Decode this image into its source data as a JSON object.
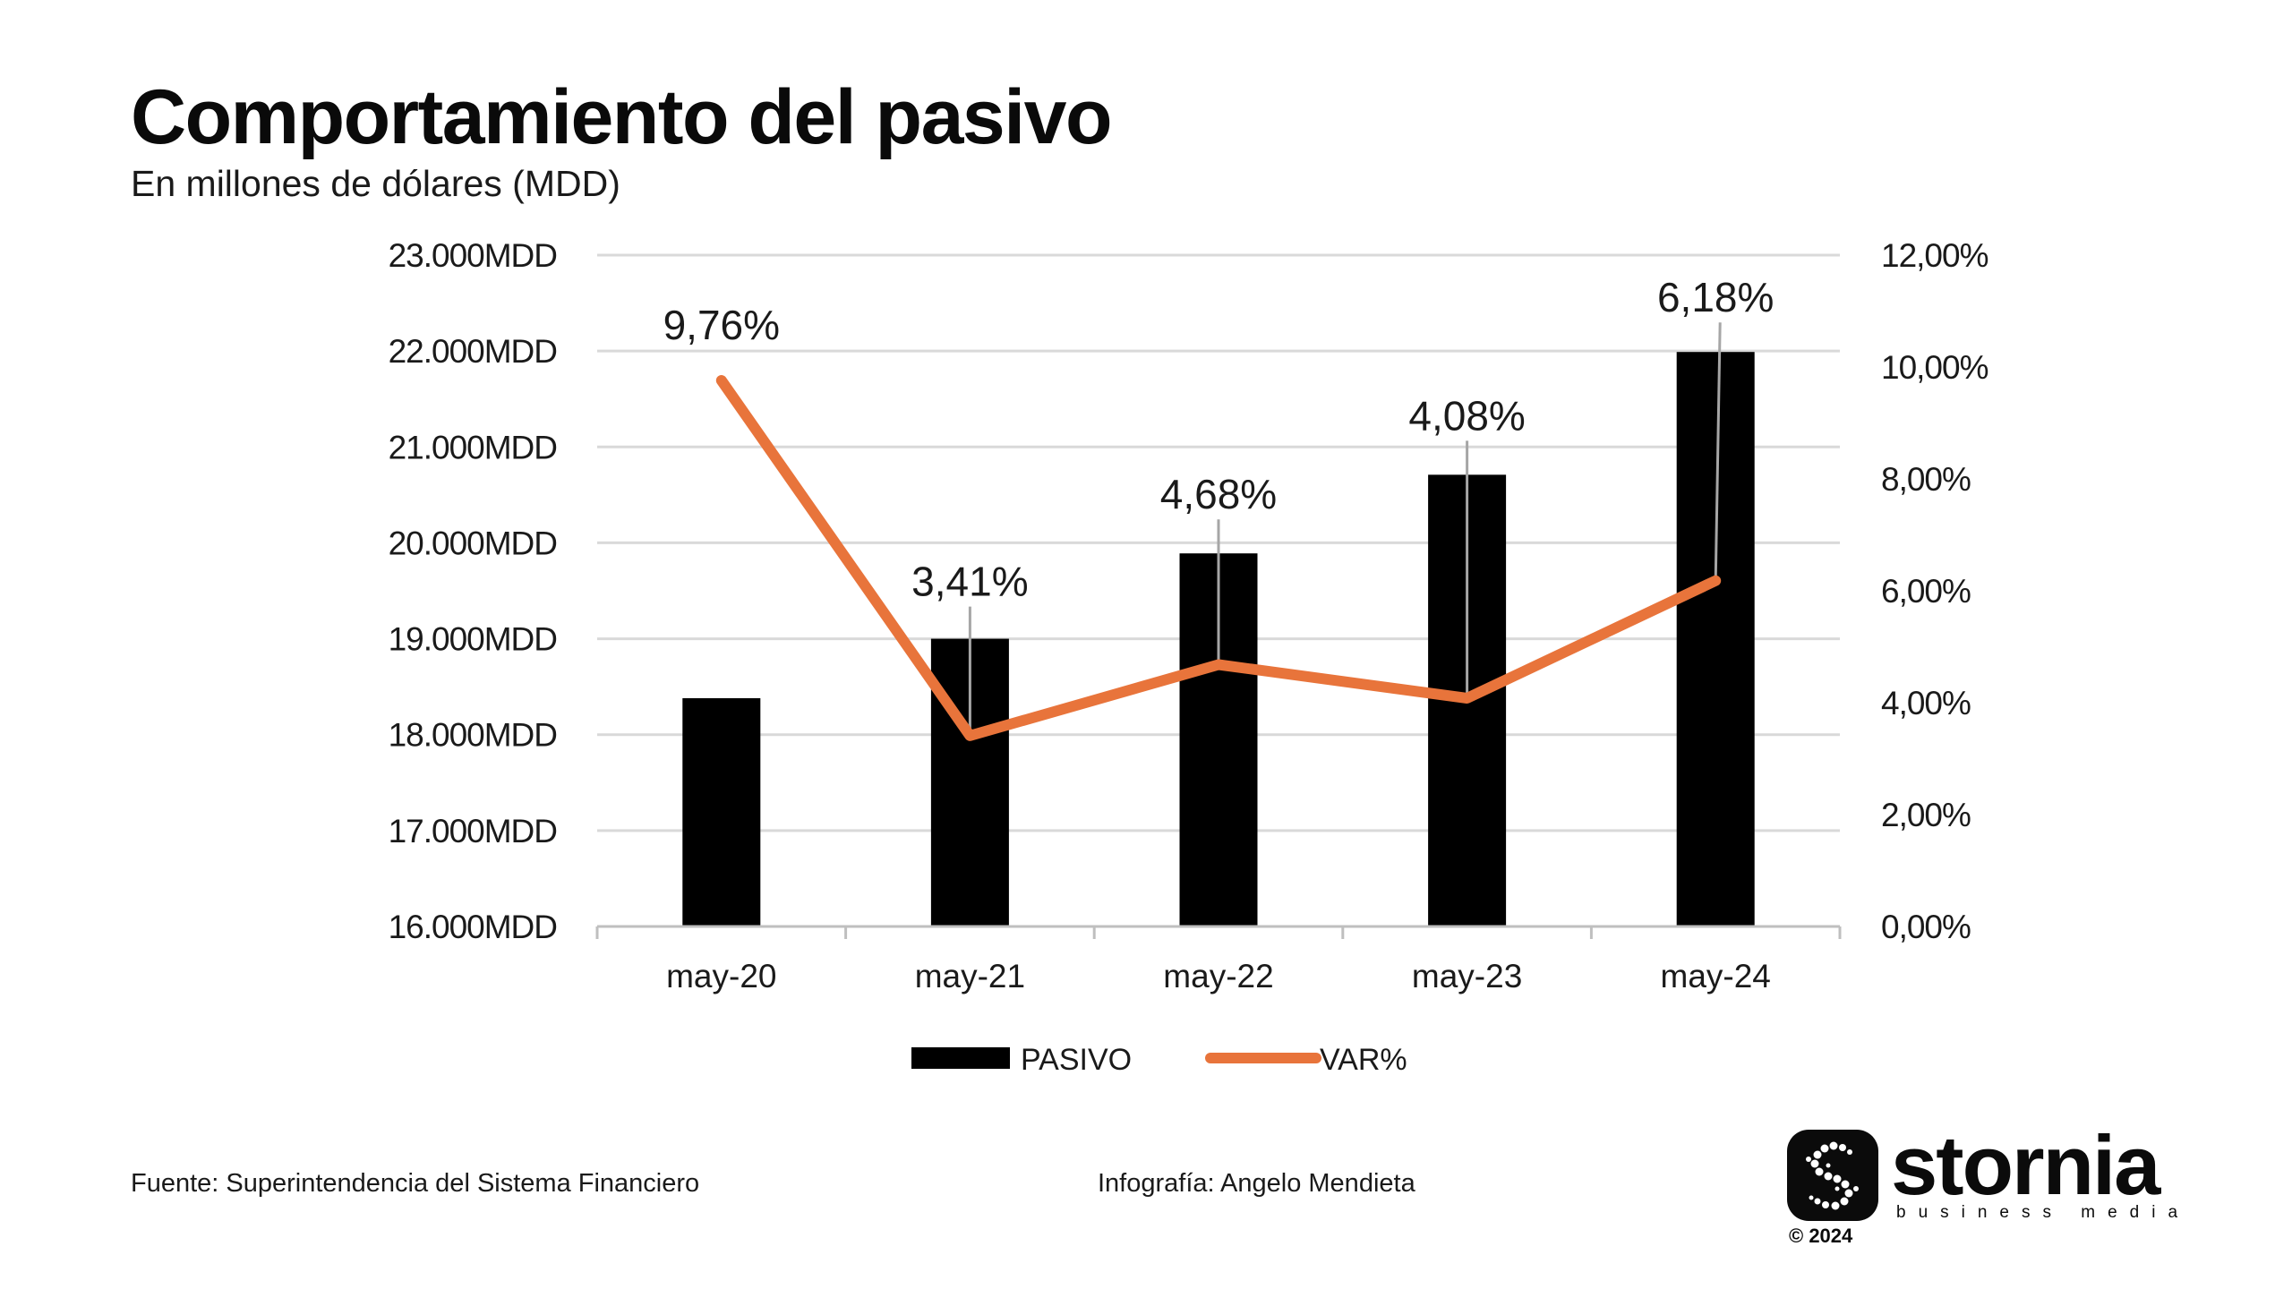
{
  "header": {
    "title": "Comportamiento del pasivo",
    "subtitle": "En millones de dólares (MDD)"
  },
  "chart_data": {
    "type": "bar",
    "categories": [
      "may-20",
      "may-21",
      "may-22",
      "may-23",
      "may-24"
    ],
    "series": [
      {
        "name": "PASIVO",
        "type": "bar",
        "axis": "left",
        "values": [
          18380,
          19000,
          19890,
          20710,
          21990
        ]
      },
      {
        "name": "VAR%",
        "type": "line",
        "axis": "right",
        "values": [
          9.76,
          3.41,
          4.68,
          4.08,
          6.18
        ],
        "data_labels": [
          "9,76%",
          "3,41%",
          "4,68%",
          "4,08%",
          "6,18%"
        ]
      }
    ],
    "y_left": {
      "ylim": [
        16000,
        23000
      ],
      "ticks": [
        16000,
        17000,
        18000,
        19000,
        20000,
        21000,
        22000,
        23000
      ],
      "tick_labels": [
        "16.000MDD",
        "17.000MDD",
        "18.000MDD",
        "19.000MDD",
        "20.000MDD",
        "21.000MDD",
        "22.000MDD",
        "23.000MDD"
      ]
    },
    "y_right": {
      "ylim": [
        0,
        12
      ],
      "ticks": [
        0,
        2,
        4,
        6,
        8,
        10,
        12
      ],
      "tick_labels": [
        "0,00%",
        "2,00%",
        "4,00%",
        "6,00%",
        "8,00%",
        "10,00%",
        "12,00%"
      ]
    },
    "grid": true,
    "legend": "bottom-center",
    "colors": {
      "bar": "#000000",
      "line": "#e8743b",
      "grid": "#d9d9d9",
      "axis": "#bfbfbf",
      "leader": "#a6a6a6"
    }
  },
  "footer": {
    "source": "Fuente: Superintendencia del Sistema Financiero",
    "credit": "Infografía: Angelo Mendieta"
  },
  "logo": {
    "name": "stornia",
    "tagline": "business media",
    "copyright": "© 2024"
  }
}
